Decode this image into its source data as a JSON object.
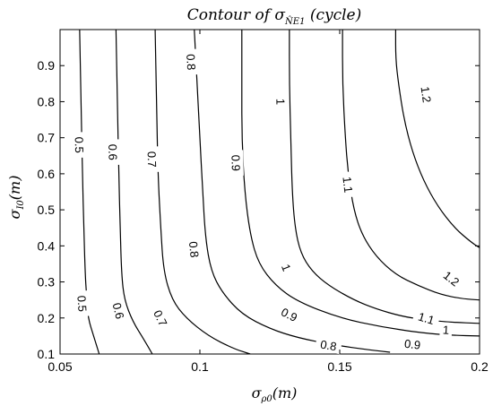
{
  "chart_data": {
    "type": "contour",
    "title_prefix": "Contour of ",
    "title_symbol": "σ",
    "title_subscript": "N̂E1",
    "title_suffix": " (cycle)",
    "xlabel_symbol": "σ",
    "xlabel_subscript": "ρ0",
    "xlabel_unit": "(m)",
    "ylabel_symbol": "σ",
    "ylabel_subscript": "I0",
    "ylabel_unit": "(m)",
    "xlim": [
      0.05,
      0.2
    ],
    "ylim": [
      0.1,
      1.0
    ],
    "xticks": [
      0.05,
      0.1,
      0.15,
      0.2
    ],
    "xtick_labels": [
      "0.05",
      "0.1",
      "0.15",
      "0.2"
    ],
    "yticks": [
      0.1,
      0.2,
      0.3,
      0.4,
      0.5,
      0.6,
      0.7,
      0.8,
      0.9
    ],
    "ytick_labels": [
      "0.1",
      "0.2",
      "0.3",
      "0.4",
      "0.5",
      "0.6",
      "0.7",
      "0.8",
      "0.9"
    ],
    "grid": false,
    "levels": [
      {
        "label": "0.5",
        "points": [
          [
            0.057,
            1.0
          ],
          [
            0.0575,
            0.8
          ],
          [
            0.058,
            0.6
          ],
          [
            0.0585,
            0.45
          ],
          [
            0.059,
            0.32
          ],
          [
            0.0595,
            0.26
          ],
          [
            0.06,
            0.2
          ],
          [
            0.062,
            0.15
          ],
          [
            0.064,
            0.1
          ]
        ],
        "label_positions": [
          [
            0.057,
            0.68
          ],
          [
            0.058,
            0.24
          ]
        ]
      },
      {
        "label": "0.6",
        "points": [
          [
            0.07,
            1.0
          ],
          [
            0.0705,
            0.8
          ],
          [
            0.071,
            0.6
          ],
          [
            0.0715,
            0.45
          ],
          [
            0.072,
            0.32
          ],
          [
            0.073,
            0.25
          ],
          [
            0.076,
            0.19
          ],
          [
            0.08,
            0.14
          ],
          [
            0.083,
            0.1
          ]
        ],
        "label_positions": [
          [
            0.069,
            0.66
          ],
          [
            0.071,
            0.22
          ]
        ]
      },
      {
        "label": "0.7",
        "points": [
          [
            0.084,
            1.0
          ],
          [
            0.0845,
            0.8
          ],
          [
            0.085,
            0.6
          ],
          [
            0.086,
            0.45
          ],
          [
            0.087,
            0.33
          ],
          [
            0.09,
            0.25
          ],
          [
            0.095,
            0.2
          ],
          [
            0.103,
            0.15
          ],
          [
            0.112,
            0.115
          ],
          [
            0.118,
            0.1
          ]
        ],
        "label_positions": [
          [
            0.083,
            0.64
          ],
          [
            0.086,
            0.2
          ]
        ]
      },
      {
        "label": "0.8",
        "points": [
          [
            0.098,
            1.0
          ],
          [
            0.099,
            0.85
          ],
          [
            0.1,
            0.7
          ],
          [
            0.101,
            0.55
          ],
          [
            0.102,
            0.42
          ],
          [
            0.104,
            0.33
          ],
          [
            0.108,
            0.27
          ],
          [
            0.115,
            0.21
          ],
          [
            0.125,
            0.17
          ],
          [
            0.135,
            0.145
          ],
          [
            0.148,
            0.125
          ],
          [
            0.16,
            0.112
          ],
          [
            0.168,
            0.105
          ]
        ],
        "label_positions": [
          [
            0.097,
            0.91
          ],
          [
            0.098,
            0.39
          ],
          [
            0.146,
            0.125
          ]
        ]
      },
      {
        "label": "0.9",
        "points": [
          [
            0.115,
            1.0
          ],
          [
            0.115,
            0.85
          ],
          [
            0.115,
            0.7
          ],
          [
            0.116,
            0.55
          ],
          [
            0.118,
            0.43
          ],
          [
            0.121,
            0.35
          ],
          [
            0.127,
            0.29
          ],
          [
            0.135,
            0.245
          ],
          [
            0.15,
            0.2
          ],
          [
            0.165,
            0.175
          ],
          [
            0.18,
            0.158
          ],
          [
            0.19,
            0.152
          ],
          [
            0.2,
            0.15
          ]
        ],
        "label_positions": [
          [
            0.113,
            0.63
          ],
          [
            0.132,
            0.21
          ],
          [
            0.176,
            0.128
          ]
        ]
      },
      {
        "label": "1",
        "points": [
          [
            0.132,
            1.0
          ],
          [
            0.132,
            0.85
          ],
          [
            0.1325,
            0.7
          ],
          [
            0.133,
            0.55
          ],
          [
            0.134,
            0.45
          ],
          [
            0.136,
            0.38
          ],
          [
            0.14,
            0.33
          ],
          [
            0.146,
            0.29
          ],
          [
            0.155,
            0.25
          ],
          [
            0.163,
            0.225
          ],
          [
            0.172,
            0.205
          ],
          [
            0.18,
            0.195
          ],
          [
            0.19,
            0.188
          ],
          [
            0.2,
            0.185
          ]
        ],
        "label_positions": [
          [
            0.129,
            0.8
          ],
          [
            0.131,
            0.34
          ],
          [
            0.188,
            0.168
          ]
        ]
      },
      {
        "label": "1.1",
        "points": [
          [
            0.151,
            1.0
          ],
          [
            0.151,
            0.85
          ],
          [
            0.152,
            0.7
          ],
          [
            0.153,
            0.6
          ],
          [
            0.155,
            0.5
          ],
          [
            0.158,
            0.43
          ],
          [
            0.163,
            0.37
          ],
          [
            0.17,
            0.32
          ],
          [
            0.178,
            0.29
          ],
          [
            0.186,
            0.265
          ],
          [
            0.194,
            0.253
          ],
          [
            0.2,
            0.25
          ]
        ],
        "label_positions": [
          [
            0.153,
            0.57
          ],
          [
            0.181,
            0.2
          ]
        ]
      },
      {
        "label": "1.2",
        "points": [
          [
            0.17,
            1.0
          ],
          [
            0.17,
            0.92
          ],
          [
            0.171,
            0.85
          ],
          [
            0.173,
            0.75
          ],
          [
            0.176,
            0.66
          ],
          [
            0.18,
            0.58
          ],
          [
            0.185,
            0.51
          ],
          [
            0.191,
            0.45
          ],
          [
            0.197,
            0.41
          ],
          [
            0.2,
            0.395
          ]
        ],
        "label_positions": [
          [
            0.181,
            0.82
          ],
          [
            0.19,
            0.31
          ]
        ]
      }
    ]
  }
}
